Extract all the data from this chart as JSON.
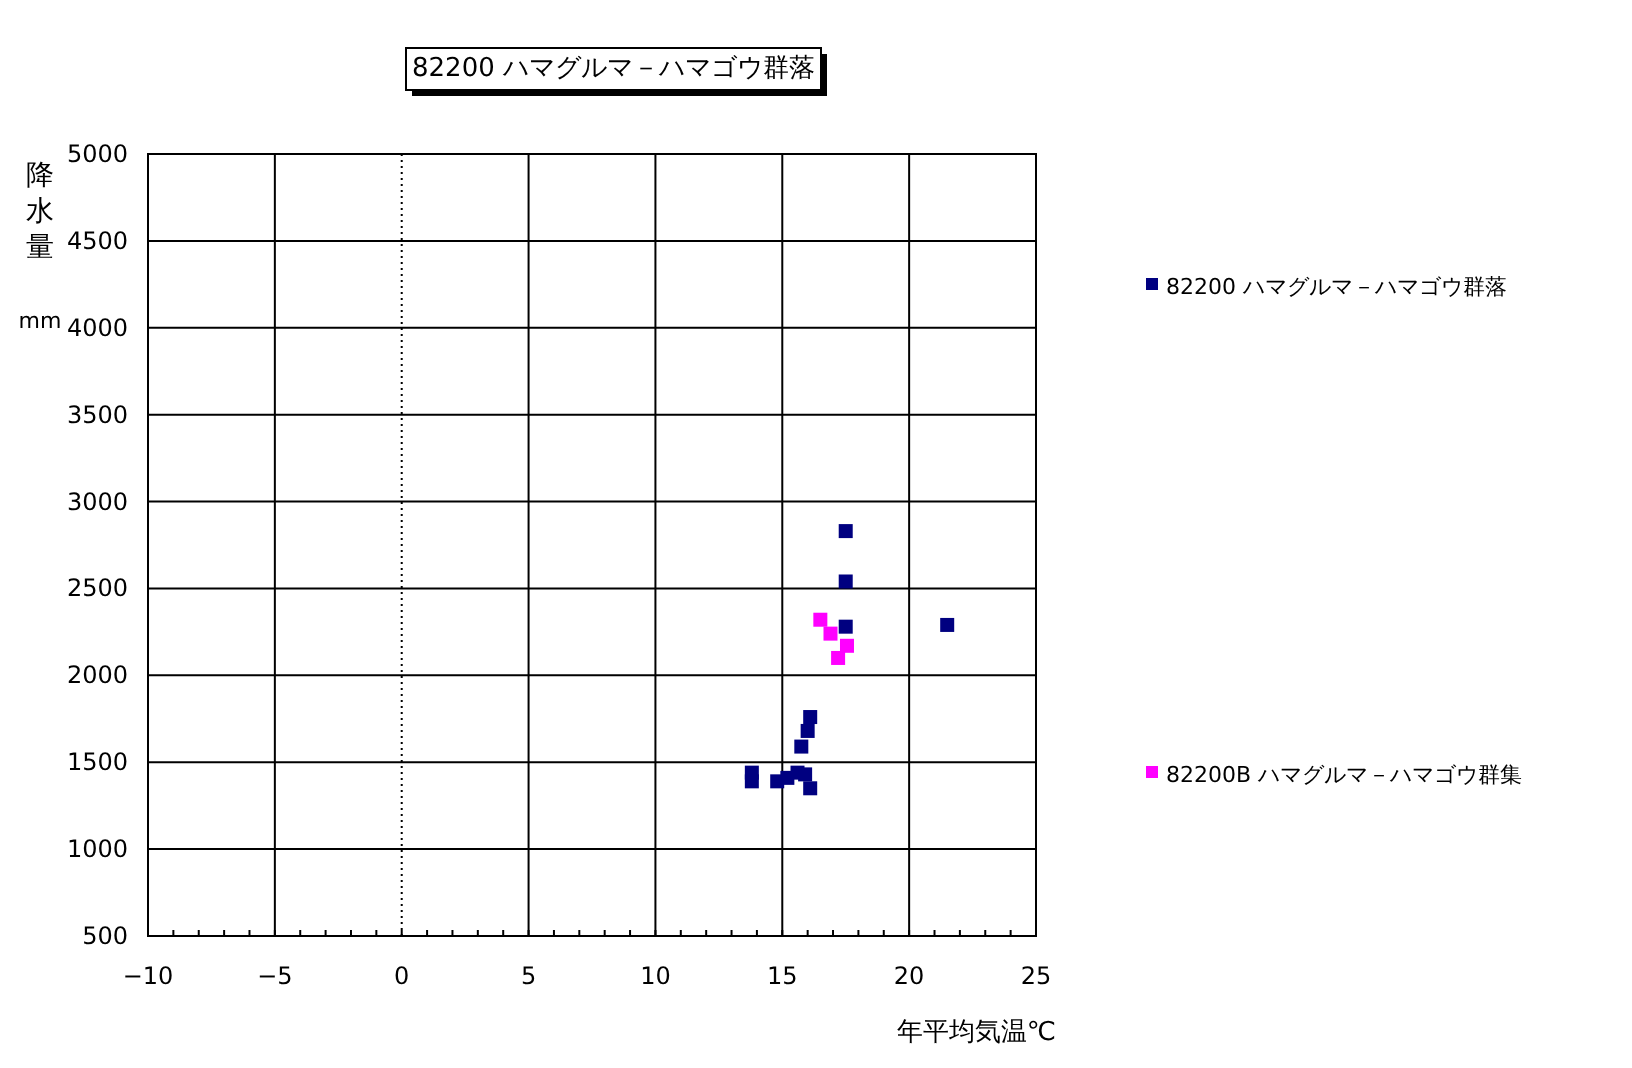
{
  "chart_data": {
    "type": "scatter",
    "title": "82200 ハマグルマ－ハマゴウ群落",
    "xlabel": "年平均気温℃",
    "ylabel": "降水量 mm",
    "xlim": [
      -10,
      25
    ],
    "xticks": [
      {
        "value": -10,
        "label": "−10"
      },
      {
        "value": -5,
        "label": "−5"
      },
      0,
      5,
      10,
      15,
      20,
      25
    ],
    "ylim": [
      500,
      5000
    ],
    "yticks": [
      500,
      1000,
      1500,
      2000,
      2500,
      3000,
      3500,
      4000,
      4500,
      5000
    ],
    "grid": true,
    "legend": "right",
    "marker": "square",
    "ref_lines": [
      {
        "axis": "x",
        "value": 0,
        "line_style": "dotted"
      }
    ],
    "series": [
      {
        "name": "82200 ハマグルマ－ハマゴウ群落",
        "color": "#000080",
        "x": [
          17.5,
          17.5,
          17.5,
          21.5,
          16.1,
          16.0,
          15.75,
          13.8,
          13.8,
          14.8,
          15.2,
          15.6,
          15.9,
          16.1
        ],
        "values": [
          2830,
          2540,
          2280,
          2290,
          1760,
          1680,
          1590,
          1440,
          1390,
          1390,
          1410,
          1440,
          1430,
          1350
        ]
      },
      {
        "name": "82200B ハマグルマ－ハマゴウ群集",
        "color": "#ff00ff",
        "x": [
          16.5,
          16.9,
          17.55,
          17.2
        ],
        "values": [
          2320,
          2240,
          2170,
          2100
        ]
      }
    ]
  }
}
